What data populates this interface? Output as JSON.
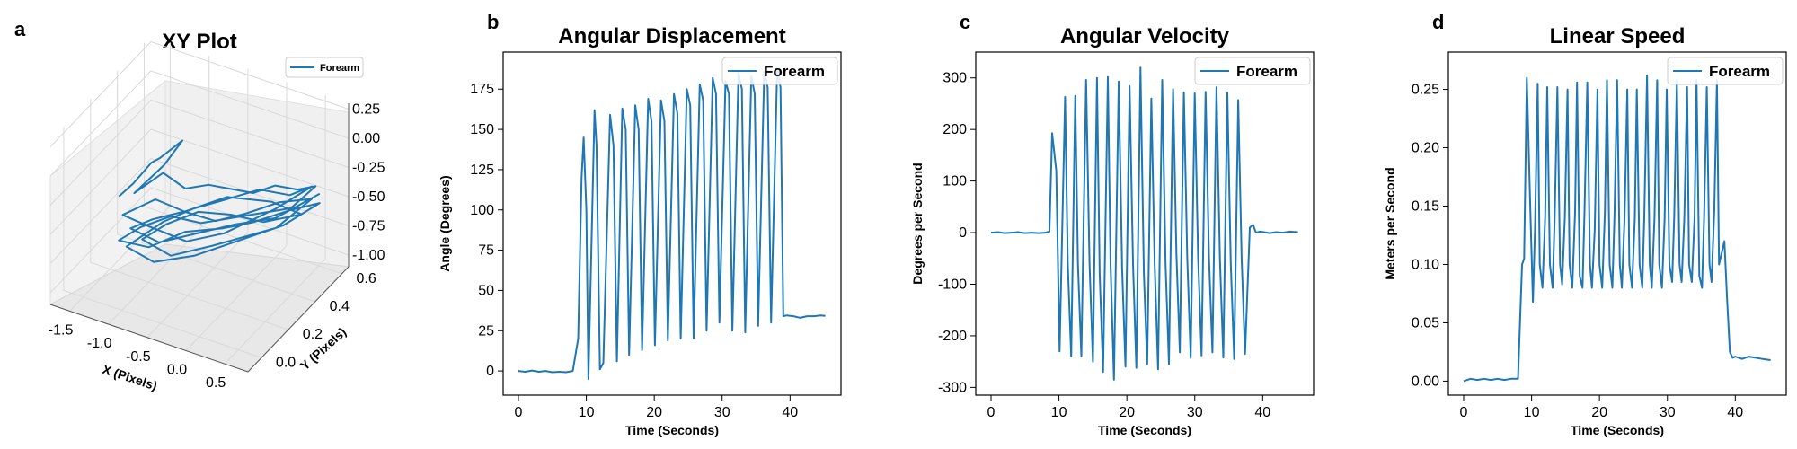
{
  "colors": {
    "series": "#1f77b4",
    "pane": "#f2f2f2",
    "grid": "#d9d9d9",
    "axis": "#000000"
  },
  "chart_data": [
    {
      "letter": "a",
      "type": "line3d",
      "title": "XY Plot",
      "xlabel": "X (Pixels)",
      "ylabel": "Y (Pixels)",
      "zlabel": "",
      "xlim": [
        -1.75,
        0.8
      ],
      "ylim": [
        -0.1,
        0.65
      ],
      "zlim": [
        -1.1,
        0.3
      ],
      "xticks": [
        "-1.5",
        "-1.0",
        "-0.5",
        "0.0",
        "0.5"
      ],
      "xtick_values": [
        -1.5,
        -1.0,
        -0.5,
        0.0,
        0.5
      ],
      "yticks": [
        "0.0",
        "0.2",
        "0.4",
        "0.6"
      ],
      "ytick_values": [
        0.0,
        0.2,
        0.4,
        0.6
      ],
      "zticks": [
        "0.25",
        "0.00",
        "-0.25",
        "-0.50",
        "-0.75",
        "-1.00"
      ],
      "ztick_values": [
        0.25,
        0.0,
        -0.25,
        -0.5,
        -0.75,
        -1.0
      ],
      "legend": [
        "Forearm"
      ],
      "legend_position": "top-right",
      "series": [
        {
          "name": "Forearm"
        }
      ]
    },
    {
      "letter": "b",
      "type": "line",
      "title": "Angular Displacement",
      "xlabel": "Time (Seconds)",
      "ylabel": "Angle (Degrees)",
      "xlim": [
        -2.25,
        47.5
      ],
      "ylim": [
        -15,
        198
      ],
      "xticks": [
        "0",
        "10",
        "20",
        "30",
        "40"
      ],
      "xtick_values": [
        0,
        10,
        20,
        30,
        40
      ],
      "yticks": [
        "0",
        "25",
        "50",
        "75",
        "100",
        "125",
        "150",
        "175"
      ],
      "ytick_values": [
        0,
        25,
        50,
        75,
        100,
        125,
        150,
        175
      ],
      "legend": [
        "Forearm"
      ],
      "legend_position": "top-right",
      "series": [
        {
          "name": "Forearm",
          "x": [
            0,
            1,
            2,
            3,
            4,
            5,
            6,
            7,
            8,
            8.8,
            9.3,
            9.6,
            10.0,
            10.3,
            11.2,
            11.5,
            12.0,
            12.5,
            13.5,
            14.0,
            14.5,
            15.3,
            15.8,
            16.3,
            17.2,
            17.7,
            18.2,
            19.1,
            19.6,
            20.1,
            21.0,
            21.5,
            22.0,
            22.9,
            23.4,
            23.9,
            24.8,
            25.3,
            25.8,
            26.7,
            27.2,
            27.7,
            28.6,
            29.1,
            29.6,
            30.5,
            31.0,
            31.5,
            32.4,
            32.9,
            33.4,
            34.3,
            34.8,
            35.3,
            36.2,
            36.7,
            37.2,
            38.1,
            38.6,
            39.0,
            39.5,
            40.5,
            41.5,
            42.5,
            43.5,
            44.5,
            45.2
          ],
          "y": [
            0,
            -0.5,
            0.3,
            -0.5,
            0,
            -0.8,
            -0.5,
            -0.8,
            0,
            20,
            120,
            145,
            100,
            -5,
            162,
            140,
            1,
            5,
            159,
            140,
            6,
            163,
            150,
            10,
            165,
            150,
            13,
            169,
            155,
            16,
            168,
            155,
            19,
            172,
            160,
            20,
            175,
            165,
            20,
            178,
            168,
            25,
            182,
            172,
            30,
            180,
            172,
            25,
            185,
            175,
            24,
            183,
            172,
            28,
            186,
            176,
            30,
            188,
            176,
            34,
            34.5,
            34,
            33,
            34,
            34,
            34.5,
            34.2
          ]
        }
      ]
    },
    {
      "letter": "c",
      "type": "line",
      "title": "Angular Velocity",
      "xlabel": "Time (Seconds)",
      "ylabel": "Degrees per Second",
      "xlim": [
        -2.25,
        47.5
      ],
      "ylim": [
        -315,
        350
      ],
      "xticks": [
        "0",
        "10",
        "20",
        "30",
        "40"
      ],
      "xtick_values": [
        0,
        10,
        20,
        30,
        40
      ],
      "yticks": [
        "-300",
        "-200",
        "-100",
        "0",
        "100",
        "200",
        "300"
      ],
      "ytick_values": [
        -300,
        -200,
        -100,
        0,
        100,
        200,
        300
      ],
      "legend": [
        "Forearm"
      ],
      "legend_position": "top-right",
      "series": [
        {
          "name": "Forearm",
          "x": [
            0,
            1,
            2,
            3,
            4,
            5,
            6,
            7,
            8,
            8.6,
            9.0,
            9.6,
            10.1,
            10.9,
            11.3,
            11.8,
            12.4,
            12.8,
            13.3,
            14.0,
            14.5,
            15.0,
            15.6,
            16.0,
            16.5,
            17.2,
            17.6,
            18.1,
            18.8,
            19.3,
            19.8,
            20.4,
            20.9,
            21.4,
            22.0,
            22.5,
            23.0,
            23.6,
            24.1,
            24.6,
            25.2,
            25.7,
            26.2,
            26.8,
            27.3,
            27.8,
            28.4,
            28.9,
            29.4,
            30.0,
            30.5,
            31.0,
            31.6,
            32.1,
            32.6,
            33.2,
            33.7,
            34.2,
            34.8,
            35.3,
            35.8,
            36.4,
            36.9,
            37.4,
            38.1,
            38.6,
            39.0,
            39.6,
            40.2,
            41,
            42,
            43,
            44,
            45.2
          ],
          "y": [
            0,
            1,
            -1,
            0,
            1,
            -1,
            0,
            -1,
            0,
            2,
            193,
            120,
            -230,
            263,
            -60,
            -240,
            265,
            -60,
            -240,
            296,
            -60,
            -250,
            300,
            -80,
            -270,
            302,
            -60,
            -285,
            293,
            -70,
            -260,
            284,
            -60,
            -262,
            320,
            -80,
            -255,
            260,
            -60,
            -265,
            296,
            -60,
            -255,
            278,
            -40,
            -232,
            272,
            -50,
            -243,
            270,
            -50,
            -238,
            273,
            -50,
            -232,
            282,
            -50,
            -242,
            272,
            -60,
            -245,
            257,
            -50,
            -235,
            10,
            15,
            0,
            2,
            1,
            -1,
            1,
            0,
            2,
            1
          ]
        }
      ]
    },
    {
      "letter": "d",
      "type": "line",
      "title": "Linear Speed",
      "xlabel": "Time (Seconds)",
      "ylabel": "Meters per Second",
      "xlim": [
        -2.25,
        47.5
      ],
      "ylim": [
        -0.012,
        0.282
      ],
      "xticks": [
        "0",
        "10",
        "20",
        "30",
        "40"
      ],
      "xtick_values": [
        0,
        10,
        20,
        30,
        40
      ],
      "yticks": [
        "0.00",
        "0.05",
        "0.10",
        "0.15",
        "0.20",
        "0.25"
      ],
      "ytick_values": [
        0,
        0.05,
        0.1,
        0.15,
        0.2,
        0.25
      ],
      "legend": [
        "Forearm"
      ],
      "legend_position": "top-right",
      "series": [
        {
          "name": "Forearm",
          "x": [
            0,
            1,
            2,
            3,
            4,
            5,
            6,
            7,
            8,
            8.6,
            8.9,
            9.3,
            9.8,
            10.2,
            10.5,
            10.9,
            11.2,
            11.6,
            12.0,
            12.3,
            12.7,
            13.1,
            13.4,
            13.8,
            14.2,
            14.5,
            14.9,
            15.3,
            15.6,
            16.0,
            16.4,
            16.7,
            17.1,
            17.5,
            17.8,
            18.2,
            18.6,
            18.9,
            19.3,
            19.7,
            20.0,
            20.4,
            20.8,
            21.1,
            21.5,
            21.9,
            22.2,
            22.6,
            23.0,
            23.3,
            23.7,
            24.1,
            24.4,
            24.8,
            25.2,
            25.5,
            25.9,
            26.3,
            26.6,
            27.0,
            27.4,
            27.7,
            28.1,
            28.5,
            28.8,
            29.2,
            29.6,
            29.9,
            30.3,
            30.7,
            31.0,
            31.4,
            31.8,
            32.1,
            32.5,
            32.9,
            33.2,
            33.6,
            34.0,
            34.3,
            34.7,
            35.1,
            35.4,
            35.8,
            36.2,
            36.5,
            36.9,
            37.3,
            37.6,
            38.0,
            38.4,
            38.8,
            39.2,
            39.6,
            40,
            41,
            42,
            43,
            44,
            45.2
          ],
          "y": [
            0.0,
            0.002,
            0.001,
            0.002,
            0.001,
            0.002,
            0.001,
            0.002,
            0.002,
            0.1,
            0.105,
            0.26,
            0.15,
            0.068,
            0.13,
            0.255,
            0.1,
            0.08,
            0.14,
            0.252,
            0.1,
            0.08,
            0.14,
            0.252,
            0.1,
            0.083,
            0.14,
            0.25,
            0.1,
            0.08,
            0.145,
            0.256,
            0.09,
            0.08,
            0.145,
            0.256,
            0.1,
            0.08,
            0.13,
            0.25,
            0.1,
            0.08,
            0.145,
            0.258,
            0.1,
            0.08,
            0.14,
            0.258,
            0.1,
            0.08,
            0.14,
            0.25,
            0.1,
            0.08,
            0.14,
            0.25,
            0.1,
            0.08,
            0.14,
            0.262,
            0.1,
            0.08,
            0.14,
            0.258,
            0.1,
            0.08,
            0.14,
            0.25,
            0.1,
            0.085,
            0.14,
            0.258,
            0.1,
            0.085,
            0.14,
            0.252,
            0.1,
            0.085,
            0.14,
            0.258,
            0.09,
            0.08,
            0.14,
            0.252,
            0.1,
            0.085,
            0.145,
            0.258,
            0.1,
            0.11,
            0.12,
            0.07,
            0.025,
            0.02,
            0.021,
            0.019,
            0.021,
            0.02,
            0.019,
            0.018
          ]
        }
      ]
    }
  ],
  "xy_path": [
    [
      -1.35,
      0.18,
      -0.42
    ],
    [
      -1.2,
      0.2,
      -0.3
    ],
    [
      -1.0,
      0.22,
      -0.1
    ],
    [
      -0.85,
      0.2,
      0.0
    ],
    [
      -0.6,
      0.22,
      0.18
    ],
    [
      -0.8,
      0.2,
      -0.05
    ],
    [
      -1.1,
      0.15,
      -0.3
    ],
    [
      -0.9,
      0.25,
      -0.2
    ],
    [
      -0.7,
      0.3,
      -0.35
    ],
    [
      -0.4,
      0.3,
      -0.25
    ],
    [
      -0.2,
      0.35,
      -0.3
    ],
    [
      0.0,
      0.4,
      -0.35
    ],
    [
      0.2,
      0.45,
      -0.3
    ],
    [
      0.4,
      0.5,
      -0.35
    ],
    [
      0.6,
      0.52,
      -0.3
    ],
    [
      0.4,
      0.45,
      -0.45
    ],
    [
      0.1,
      0.4,
      -0.5
    ],
    [
      -0.2,
      0.35,
      -0.55
    ],
    [
      -0.5,
      0.3,
      -0.6
    ],
    [
      -0.8,
      0.25,
      -0.55
    ],
    [
      -1.1,
      0.2,
      -0.65
    ],
    [
      -1.3,
      0.15,
      -0.75
    ],
    [
      -1.0,
      0.2,
      -0.8
    ],
    [
      -0.7,
      0.3,
      -0.72
    ],
    [
      -0.3,
      0.35,
      -0.66
    ],
    [
      0.0,
      0.4,
      -0.6
    ],
    [
      0.3,
      0.5,
      -0.55
    ],
    [
      0.6,
      0.55,
      -0.48
    ],
    [
      0.3,
      0.45,
      -0.62
    ],
    [
      -0.1,
      0.35,
      -0.72
    ],
    [
      -0.5,
      0.25,
      -0.82
    ],
    [
      -0.9,
      0.18,
      -0.88
    ],
    [
      -1.2,
      0.15,
      -0.78
    ],
    [
      -0.9,
      0.25,
      -0.62
    ],
    [
      -0.6,
      0.3,
      -0.5
    ],
    [
      -0.3,
      0.35,
      -0.42
    ],
    [
      0.0,
      0.45,
      -0.38
    ],
    [
      0.3,
      0.5,
      -0.42
    ],
    [
      0.5,
      0.55,
      -0.36
    ],
    [
      0.2,
      0.45,
      -0.5
    ],
    [
      -0.2,
      0.3,
      -0.62
    ],
    [
      -0.6,
      0.25,
      -0.72
    ],
    [
      -1.0,
      0.2,
      -0.62
    ],
    [
      -1.25,
      0.15,
      -0.52
    ],
    [
      -1.0,
      0.25,
      -0.45
    ],
    [
      -0.7,
      0.3,
      -0.55
    ],
    [
      -0.4,
      0.35,
      -0.62
    ],
    [
      -0.1,
      0.4,
      -0.55
    ],
    [
      0.2,
      0.48,
      -0.48
    ],
    [
      0.55,
      0.52,
      -0.42
    ],
    [
      0.3,
      0.4,
      -0.58
    ],
    [
      0.0,
      0.35,
      -0.66
    ],
    [
      -0.35,
      0.3,
      -0.76
    ],
    [
      -0.75,
      0.22,
      -0.84
    ],
    [
      -1.05,
      0.18,
      -0.72
    ],
    [
      -0.8,
      0.22,
      -0.58
    ],
    [
      -0.5,
      0.28,
      -0.48
    ],
    [
      -0.2,
      0.35,
      -0.52
    ],
    [
      0.1,
      0.42,
      -0.6
    ],
    [
      0.45,
      0.5,
      -0.55
    ],
    [
      0.15,
      0.45,
      -0.45
    ],
    [
      -0.25,
      0.35,
      -0.38
    ],
    [
      -0.6,
      0.25,
      -0.46
    ],
    [
      -0.95,
      0.2,
      -0.55
    ],
    [
      -1.2,
      0.18,
      -0.66
    ],
    [
      -0.9,
      0.22,
      -0.76
    ],
    [
      -0.55,
      0.3,
      -0.7
    ],
    [
      -0.2,
      0.38,
      -0.64
    ],
    [
      0.2,
      0.45,
      -0.58
    ],
    [
      0.6,
      0.55,
      -0.4
    ]
  ]
}
